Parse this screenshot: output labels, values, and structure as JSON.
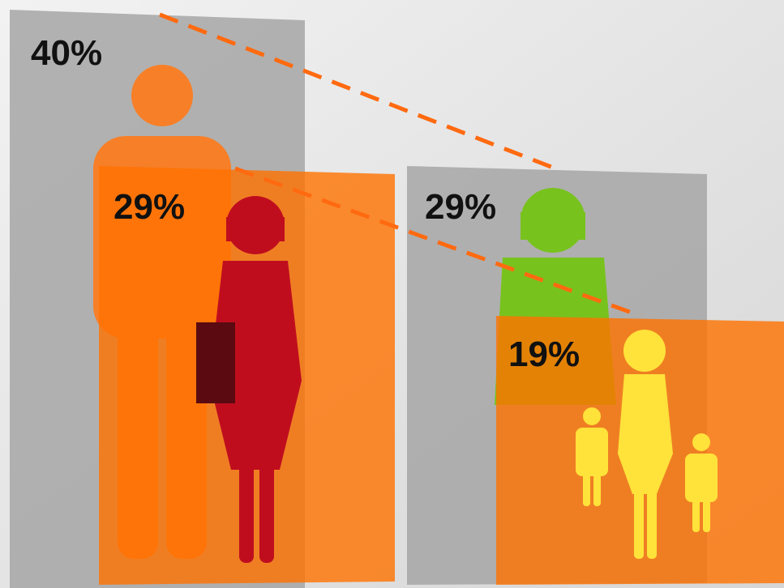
{
  "panels": [
    {
      "label": "40%"
    },
    {
      "label": "29%"
    },
    {
      "label": "29%"
    },
    {
      "label": "19%"
    }
  ]
}
